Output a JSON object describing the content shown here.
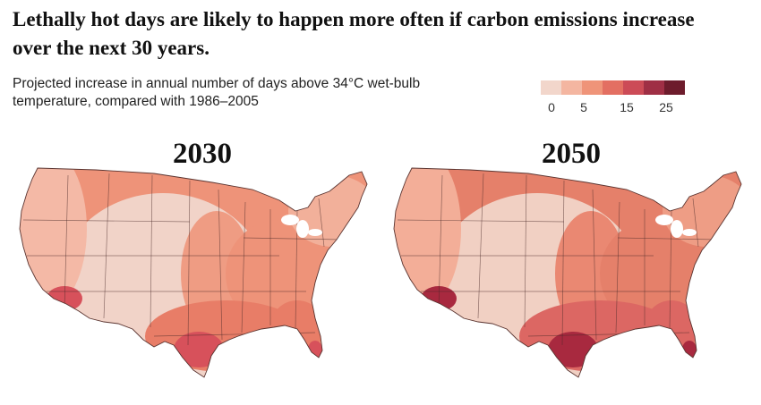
{
  "headline": "Lethally hot days are likely to happen more often if carbon emissions increase over the next 30 years.",
  "subtitle": "Projected increase in annual number of days above 34°C wet-bulb temperature, compared with 1986–2005",
  "legend": {
    "colors": [
      "#f2d6cb",
      "#f4b6a1",
      "#ef9479",
      "#e36f62",
      "#cc4b57",
      "#9f2f45",
      "#6d1c2c"
    ],
    "tick_labels": [
      "0",
      "5",
      "15",
      "25"
    ]
  },
  "maps": [
    {
      "year": "2030",
      "region_colors": {
        "west": "#f4b9a6",
        "mountain": "#f1d3c8",
        "plains": "#ef9c83",
        "east": "#ee9379",
        "south": "#e87d67",
        "northeast": "#f2b09a",
        "hotspot": "#d7515b"
      }
    },
    {
      "year": "2050",
      "region_colors": {
        "west": "#f3ae98",
        "mountain": "#f1d0c3",
        "plains": "#ea8872",
        "east": "#e5806a",
        "south": "#dc6763",
        "northeast": "#ee9d85",
        "hotspot": "#a8293f"
      }
    }
  ]
}
